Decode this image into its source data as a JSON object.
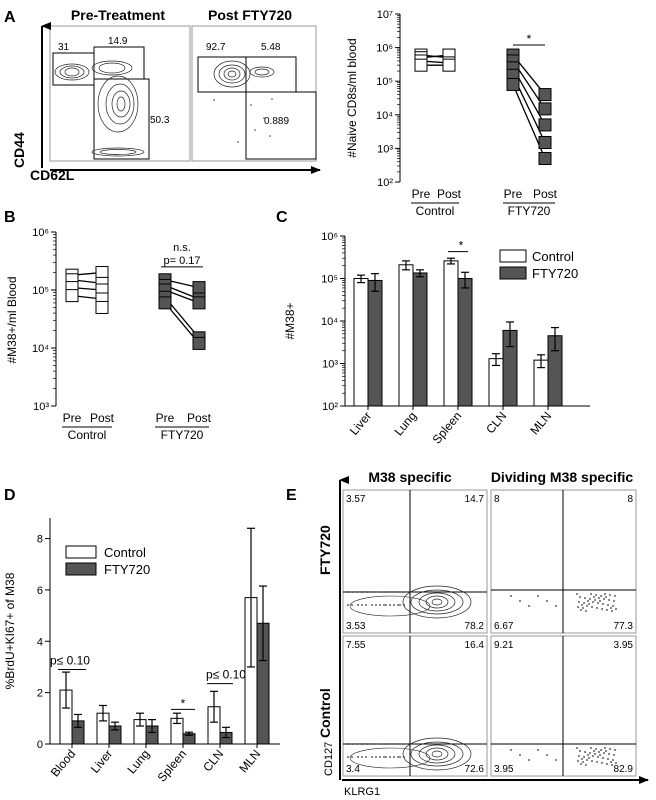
{
  "panel_letters": [
    "A",
    "B",
    "C",
    "D",
    "E"
  ],
  "colors": {
    "control_fill": "#ffffff",
    "fty_fill": "#555555",
    "stroke": "#000000"
  },
  "panel_a_flow": {
    "titles": [
      "Pre-Treatment",
      "Post FTY720"
    ],
    "x_axis_label": "CD62L",
    "y_axis_label": "CD44",
    "pre_gates": [
      "31",
      "14.9",
      "50.3"
    ],
    "post_gates": [
      "92.7",
      "5.48",
      "0.889"
    ]
  },
  "panel_e_flow": {
    "titles": [
      "M38 specific",
      "Dividing M38 specific"
    ],
    "row_labels": [
      "FTY720",
      "Control"
    ],
    "x_axis_label": "KLRG1",
    "y_axis_label": "CD127",
    "quadrants": [
      {
        "tl": "3.57",
        "tr": "14.7",
        "bl": "3.53",
        "br": "78.2"
      },
      {
        "tl": "8",
        "tr": "8",
        "bl": "6.67",
        "br": "77.3"
      },
      {
        "tl": "7.55",
        "tr": "16.4",
        "bl": "3.4",
        "br": "72.6"
      },
      {
        "tl": "9.21",
        "tr": "3.95",
        "bl": "3.95",
        "br": "82.9"
      }
    ]
  },
  "chart_data": [
    {
      "id": "A",
      "type": "scatter",
      "ylabel": "#Naive CD8s/ml blood",
      "yscale": "log",
      "ylim": [
        100,
        10000000
      ],
      "ytick_labels": [
        "10²",
        "10³",
        "10⁴",
        "10⁵",
        "10⁶",
        "10⁷"
      ],
      "categories": [
        "Pre",
        "Post",
        "Pre",
        "Post"
      ],
      "group_labels": [
        "Control",
        "FTY720"
      ],
      "annotations": [
        "*"
      ],
      "series": [
        {
          "group": "Control",
          "pre": [
            600000,
            500000,
            400000,
            300000
          ],
          "post": [
            500000,
            600000,
            350000,
            300000
          ]
        },
        {
          "group": "FTY720",
          "pre": [
            600000,
            400000,
            250000,
            150000,
            80000
          ],
          "post": [
            40000,
            15000,
            5000,
            1500,
            500
          ]
        }
      ]
    },
    {
      "id": "B",
      "type": "scatter",
      "ylabel": "#M38+/ml Blood",
      "yscale": "log",
      "ylim": [
        1000,
        1000000
      ],
      "ytick_labels": [
        "10³",
        "10⁴",
        "10⁵",
        "10⁶"
      ],
      "categories": [
        "Pre",
        "Post",
        "Pre",
        "Post"
      ],
      "group_labels": [
        "Control",
        "FTY720"
      ],
      "annotations": [
        "n.s.",
        "p= 0.17"
      ],
      "series": [
        {
          "group": "Control",
          "pre": [
            180000,
            150000,
            110000,
            80000
          ],
          "post": [
            200000,
            130000,
            100000,
            70000,
            50000
          ]
        },
        {
          "group": "FTY720",
          "pre": [
            150000,
            120000,
            100000,
            75000,
            60000
          ],
          "post": [
            110000,
            70000,
            60000,
            15000,
            12000
          ]
        }
      ]
    },
    {
      "id": "C",
      "type": "bar",
      "ylabel": "#M38+",
      "yscale": "log",
      "ylim": [
        100,
        1000000
      ],
      "ytick_labels": [
        "10²",
        "10³",
        "10⁴",
        "10⁵",
        "10⁶"
      ],
      "categories": [
        "Liver",
        "Lung",
        "Spleen",
        "CLN",
        "MLN"
      ],
      "legend": "top-right",
      "annotations": [
        "*"
      ],
      "series": [
        {
          "name": "Control",
          "values": [
            100000,
            210000,
            260000,
            1300,
            1200
          ],
          "err": [
            20000,
            50000,
            40000,
            400,
            400
          ]
        },
        {
          "name": "FTY720",
          "values": [
            90000,
            135000,
            100000,
            6000,
            4500
          ],
          "err": [
            40000,
            25000,
            40000,
            3500,
            2500
          ]
        }
      ]
    },
    {
      "id": "D",
      "type": "bar",
      "ylabel": "%BrdU+KI67+ of M38",
      "ylim": [
        0,
        8.8
      ],
      "ytick_labels": [
        "0",
        "2",
        "4",
        "6",
        "8"
      ],
      "categories": [
        "Blood",
        "Liver",
        "Lung",
        "Spleen",
        "CLN",
        "MLN"
      ],
      "legend": "top-left",
      "annotations": [
        "p≤ 0.10",
        "*",
        "p≤ 0.10"
      ],
      "series": [
        {
          "name": "Control",
          "values": [
            2.1,
            1.2,
            0.95,
            1.0,
            1.45,
            5.7
          ],
          "err": [
            0.7,
            0.3,
            0.25,
            0.2,
            0.6,
            2.7
          ]
        },
        {
          "name": "FTY720",
          "values": [
            0.9,
            0.7,
            0.7,
            0.4,
            0.45,
            4.7
          ],
          "err": [
            0.25,
            0.15,
            0.25,
            0.06,
            0.2,
            1.45
          ]
        }
      ]
    }
  ]
}
